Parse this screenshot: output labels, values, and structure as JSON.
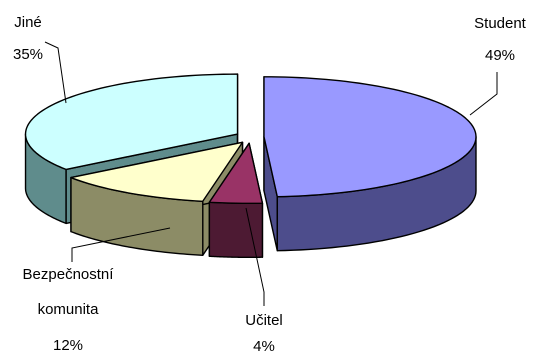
{
  "chart_data": {
    "type": "pie",
    "style": "3d-exploded",
    "legend": "none",
    "slices": [
      {
        "label": "Student",
        "value": 49,
        "value_label": "49%",
        "top_color": "#9999FF",
        "side_color": "#4D4D8C"
      },
      {
        "label": "Učitel",
        "value": 4,
        "value_label": "4%",
        "top_color": "#993366",
        "side_color": "#4D1A33"
      },
      {
        "label": "Bezpečnostní komunita",
        "label_lines": [
          "Bezpečnostní",
          "komunita"
        ],
        "value": 12,
        "value_label": "12%",
        "top_color": "#FFFFCC",
        "side_color": "#8C8C66"
      },
      {
        "label": "Jiné",
        "value": 35,
        "value_label": "35%",
        "top_color": "#CCFFFF",
        "side_color": "#5F8C8C"
      }
    ]
  }
}
